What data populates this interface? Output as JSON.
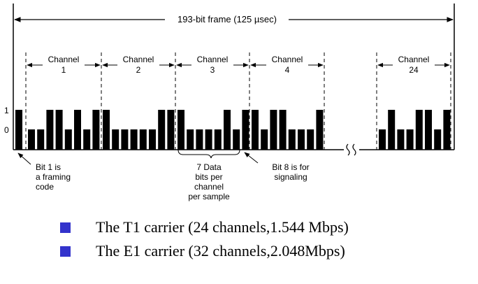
{
  "frame_label": "193-bit frame  (125 µsec)",
  "channels": [
    {
      "top": "Channel",
      "num": "1"
    },
    {
      "top": "Channel",
      "num": "2"
    },
    {
      "top": "Channel",
      "num": "3"
    },
    {
      "top": "Channel",
      "num": "4"
    },
    {
      "top": "Channel",
      "num": "24"
    }
  ],
  "y_labels": {
    "one": "1",
    "zero": "0"
  },
  "signal_bits": {
    "framing_bit": 1,
    "channel_bits": [
      [
        0,
        0,
        1,
        1,
        0,
        1,
        0,
        1
      ],
      [
        1,
        0,
        0,
        0,
        0,
        0,
        1,
        1
      ],
      [
        1,
        0,
        0,
        0,
        0,
        1,
        0,
        1
      ],
      [
        1,
        0,
        1,
        1,
        0,
        0,
        0,
        1
      ],
      [
        0,
        1,
        0,
        0,
        1,
        1,
        0,
        1
      ]
    ]
  },
  "annotations": {
    "framing": [
      "Bit 1 is",
      "a framing",
      "code"
    ],
    "data_bits": [
      "7 Data",
      "bits per",
      "channel",
      "per sample"
    ],
    "signaling": [
      "Bit 8 is for",
      "signaling"
    ]
  },
  "bullets": [
    {
      "text": "The T1 carrier (24 channels,1.544 Mbps)"
    },
    {
      "text": "The E1 carrier (32 channels,2.048Mbps)"
    }
  ]
}
